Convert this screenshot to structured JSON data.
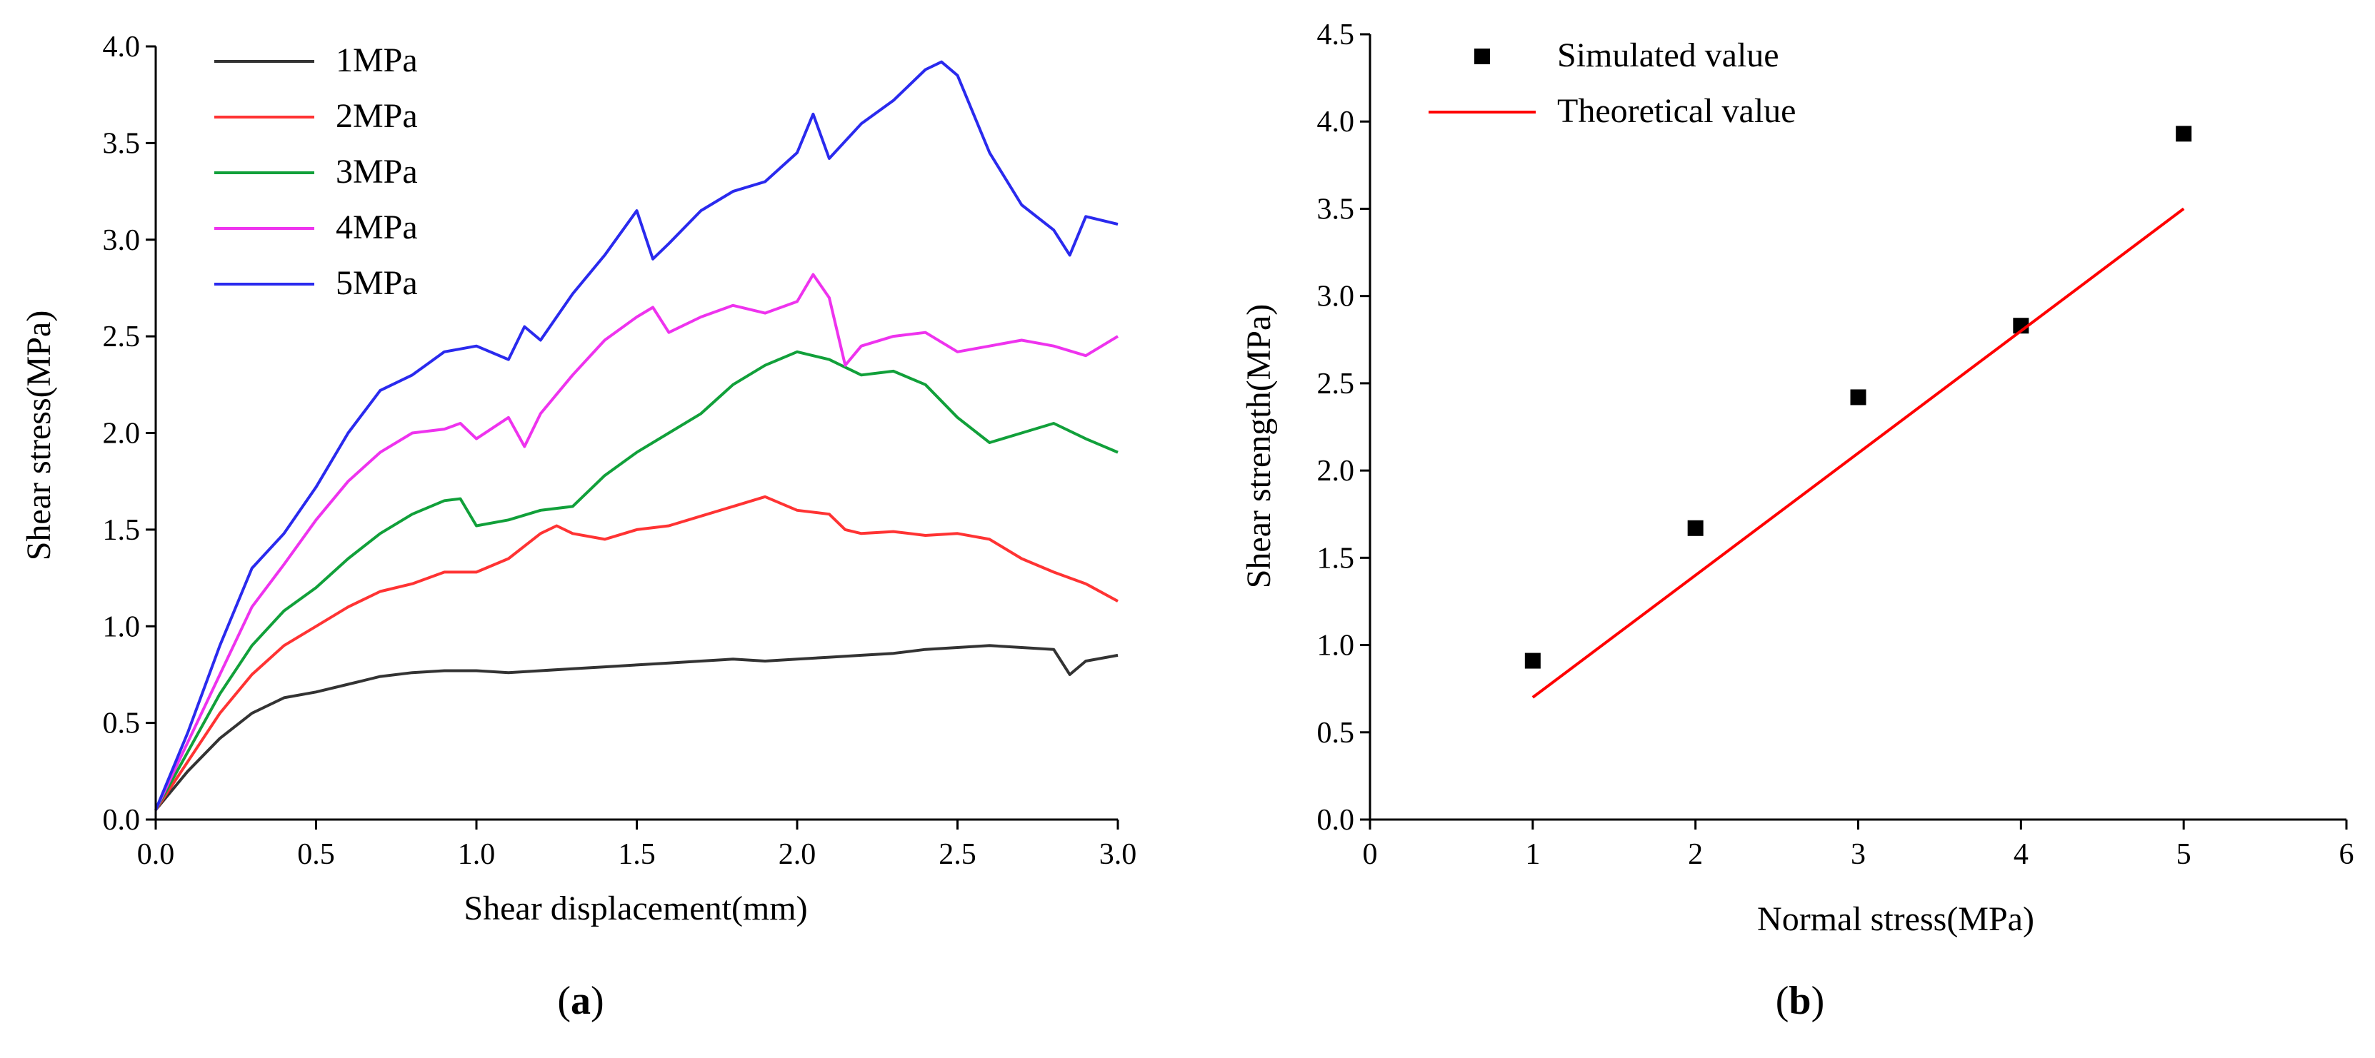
{
  "panel_labels": {
    "a": "a",
    "b": "b"
  },
  "chart_data": [
    {
      "type": "line",
      "panel": "a",
      "xlabel": "Shear displacement(mm)",
      "ylabel": "Shear stress(MPa)",
      "xlim": [
        0,
        3.0
      ],
      "ylim": [
        0,
        4.0
      ],
      "xticks": [
        "0.0",
        "0.5",
        "1.0",
        "1.5",
        "2.0",
        "2.5",
        "3.0"
      ],
      "yticks": [
        "0.0",
        "0.5",
        "1.0",
        "1.5",
        "2.0",
        "2.5",
        "3.0",
        "3.5",
        "4.0"
      ],
      "legend_position": "top-left",
      "series": [
        {
          "name": "1MPa",
          "color": "#333333",
          "x": [
            0,
            0.1,
            0.2,
            0.3,
            0.4,
            0.5,
            0.6,
            0.7,
            0.8,
            0.9,
            1.0,
            1.1,
            1.2,
            1.3,
            1.4,
            1.5,
            1.6,
            1.7,
            1.8,
            1.9,
            2.0,
            2.1,
            2.2,
            2.3,
            2.4,
            2.5,
            2.6,
            2.7,
            2.8,
            2.85,
            2.9,
            3.0
          ],
          "y": [
            0.05,
            0.25,
            0.42,
            0.55,
            0.63,
            0.66,
            0.7,
            0.74,
            0.76,
            0.77,
            0.77,
            0.76,
            0.77,
            0.78,
            0.79,
            0.8,
            0.81,
            0.82,
            0.83,
            0.82,
            0.83,
            0.84,
            0.85,
            0.86,
            0.88,
            0.89,
            0.9,
            0.89,
            0.88,
            0.75,
            0.82,
            0.85
          ]
        },
        {
          "name": "2MPa",
          "color": "#ff3333",
          "x": [
            0,
            0.1,
            0.2,
            0.3,
            0.4,
            0.5,
            0.6,
            0.7,
            0.8,
            0.9,
            1.0,
            1.1,
            1.2,
            1.25,
            1.3,
            1.4,
            1.5,
            1.6,
            1.7,
            1.8,
            1.9,
            2.0,
            2.1,
            2.15,
            2.2,
            2.3,
            2.4,
            2.5,
            2.6,
            2.7,
            2.8,
            2.9,
            3.0
          ],
          "y": [
            0.05,
            0.3,
            0.55,
            0.75,
            0.9,
            1.0,
            1.1,
            1.18,
            1.22,
            1.28,
            1.28,
            1.35,
            1.48,
            1.52,
            1.48,
            1.45,
            1.5,
            1.52,
            1.57,
            1.62,
            1.67,
            1.6,
            1.58,
            1.5,
            1.48,
            1.49,
            1.47,
            1.48,
            1.45,
            1.35,
            1.28,
            1.22,
            1.13
          ]
        },
        {
          "name": "3MPa",
          "color": "#11a03a",
          "x": [
            0,
            0.1,
            0.2,
            0.3,
            0.4,
            0.5,
            0.6,
            0.7,
            0.8,
            0.9,
            0.95,
            1.0,
            1.1,
            1.2,
            1.3,
            1.4,
            1.5,
            1.6,
            1.7,
            1.8,
            1.9,
            2.0,
            2.1,
            2.2,
            2.3,
            2.4,
            2.5,
            2.6,
            2.7,
            2.8,
            2.9,
            3.0
          ],
          "y": [
            0.05,
            0.35,
            0.65,
            0.9,
            1.08,
            1.2,
            1.35,
            1.48,
            1.58,
            1.65,
            1.66,
            1.52,
            1.55,
            1.6,
            1.62,
            1.78,
            1.9,
            2.0,
            2.1,
            2.25,
            2.35,
            2.42,
            2.38,
            2.3,
            2.32,
            2.25,
            2.08,
            1.95,
            2.0,
            2.05,
            1.97,
            1.9
          ]
        },
        {
          "name": "4MPa",
          "color": "#ee33ee",
          "x": [
            0,
            0.1,
            0.2,
            0.3,
            0.4,
            0.5,
            0.6,
            0.7,
            0.8,
            0.9,
            0.95,
            1.0,
            1.1,
            1.15,
            1.2,
            1.3,
            1.4,
            1.5,
            1.55,
            1.6,
            1.7,
            1.8,
            1.9,
            2.0,
            2.05,
            2.1,
            2.15,
            2.2,
            2.3,
            2.4,
            2.5,
            2.6,
            2.7,
            2.8,
            2.9,
            3.0
          ],
          "y": [
            0.05,
            0.4,
            0.75,
            1.1,
            1.32,
            1.55,
            1.75,
            1.9,
            2.0,
            2.02,
            2.05,
            1.97,
            2.08,
            1.93,
            2.1,
            2.3,
            2.48,
            2.6,
            2.65,
            2.52,
            2.6,
            2.66,
            2.62,
            2.68,
            2.82,
            2.7,
            2.35,
            2.45,
            2.5,
            2.52,
            2.42,
            2.45,
            2.48,
            2.45,
            2.4,
            2.5
          ]
        },
        {
          "name": "5MPa",
          "color": "#2a2aee",
          "x": [
            0,
            0.1,
            0.2,
            0.3,
            0.4,
            0.5,
            0.6,
            0.7,
            0.8,
            0.9,
            1.0,
            1.1,
            1.15,
            1.2,
            1.3,
            1.4,
            1.5,
            1.55,
            1.6,
            1.7,
            1.8,
            1.9,
            2.0,
            2.05,
            2.1,
            2.2,
            2.3,
            2.4,
            2.45,
            2.5,
            2.6,
            2.7,
            2.8,
            2.85,
            2.9,
            3.0
          ],
          "y": [
            0.05,
            0.45,
            0.9,
            1.3,
            1.48,
            1.72,
            2.0,
            2.22,
            2.3,
            2.42,
            2.45,
            2.38,
            2.55,
            2.48,
            2.72,
            2.92,
            3.15,
            2.9,
            2.98,
            3.15,
            3.25,
            3.3,
            3.45,
            3.65,
            3.42,
            3.6,
            3.72,
            3.88,
            3.92,
            3.85,
            3.45,
            3.18,
            3.05,
            2.92,
            3.12,
            3.08
          ]
        }
      ]
    },
    {
      "type": "scatter",
      "panel": "b",
      "xlabel": "Normal stress(MPa)",
      "ylabel": "Shear strength(MPa)",
      "xlim": [
        0,
        6
      ],
      "ylim": [
        0,
        4.5
      ],
      "xticks": [
        "0",
        "1",
        "2",
        "3",
        "4",
        "5",
        "6"
      ],
      "yticks": [
        "0.0",
        "0.5",
        "1.0",
        "1.5",
        "2.0",
        "2.5",
        "3.0",
        "3.5",
        "4.0",
        "4.5"
      ],
      "legend_position": "top-left",
      "series": [
        {
          "name": "Simulated value",
          "kind": "scatter",
          "color": "#000000",
          "x": [
            1,
            2,
            3,
            4,
            5
          ],
          "y": [
            0.91,
            1.67,
            2.42,
            2.83,
            3.93
          ]
        },
        {
          "name": "Theoretical value",
          "kind": "line",
          "color": "#ff0000",
          "x": [
            1,
            5
          ],
          "y": [
            0.7,
            3.5
          ]
        }
      ]
    }
  ]
}
